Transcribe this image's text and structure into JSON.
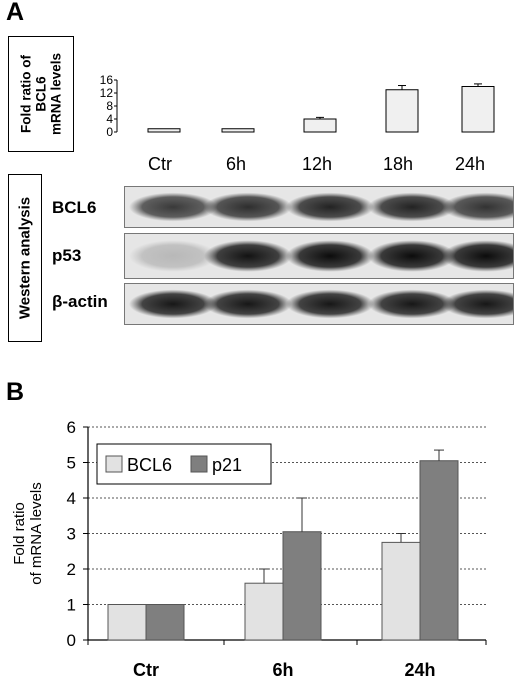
{
  "panel_a": {
    "letter": "A",
    "mrna_box_lines": [
      "Fold ratio of",
      "BCL6",
      "mRNA levels"
    ],
    "western_box_label": "Western analysis",
    "lanes": [
      "Ctr",
      "6h",
      "12h",
      "18h",
      "24h"
    ],
    "blots": [
      {
        "label": "BCL6",
        "intensities": [
          0.75,
          0.8,
          0.85,
          0.85,
          0.78
        ]
      },
      {
        "label": "p53",
        "intensities": [
          0.2,
          0.92,
          0.95,
          0.95,
          0.95
        ]
      },
      {
        "label": "β-actin",
        "intensities": [
          0.9,
          0.9,
          0.9,
          0.9,
          0.9
        ]
      }
    ]
  },
  "panel_b": {
    "letter": "B"
  },
  "chart_data": [
    {
      "type": "bar",
      "panel": "A",
      "title": "",
      "categories": [
        "Ctr",
        "6h",
        "12h",
        "18h",
        "24h"
      ],
      "values": [
        1,
        1,
        4,
        13,
        14
      ],
      "errors": [
        0,
        0,
        0.5,
        1.3,
        0.8
      ],
      "ylim": [
        0,
        16
      ],
      "yticks": [
        "0",
        "4",
        "8",
        "12",
        "16"
      ],
      "grid": false,
      "colors": {
        "bar": "#f0f0f0",
        "stroke": "#000000"
      }
    },
    {
      "type": "bar",
      "panel": "B",
      "title": "",
      "xlabel": "",
      "ylabel": "Fold ratio of mRNA levels",
      "categories": [
        "Ctr",
        "6h",
        "24h"
      ],
      "series": [
        {
          "name": "BCL6",
          "values": [
            1.0,
            1.6,
            2.75
          ],
          "errors": [
            0,
            0.4,
            0.25
          ]
        },
        {
          "name": "p21",
          "values": [
            1.0,
            3.05,
            5.05
          ],
          "errors": [
            0,
            0.95,
            0.3
          ]
        }
      ],
      "ylim": [
        0,
        6
      ],
      "yticks": [
        "0",
        "1",
        "2",
        "3",
        "4",
        "5",
        "6"
      ],
      "grid": true,
      "legend_position": "top-left",
      "colors": {
        "BCL6": "#e2e2e2",
        "p21": "#7f7f7f",
        "grid": "#555555"
      }
    }
  ]
}
